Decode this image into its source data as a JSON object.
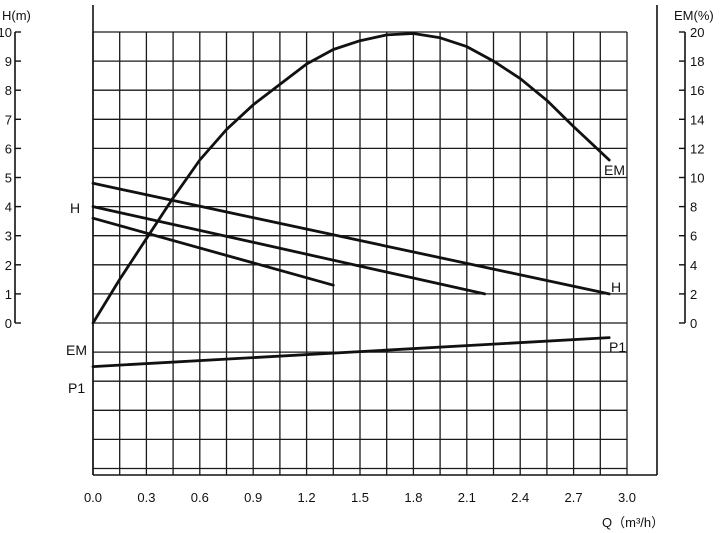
{
  "chart_data": {
    "type": "line",
    "x_axis": {
      "label": "Q（m³/h）",
      "range": [
        0,
        3.0
      ],
      "ticks": [
        "0.0",
        "0.3",
        "0.6",
        "0.9",
        "1.2",
        "1.5",
        "1.8",
        "2.1",
        "2.4",
        "2.7",
        "3.0"
      ]
    },
    "left_axis": {
      "label": "H(m)",
      "range": [
        0,
        10
      ],
      "ticks": [
        "0",
        "1",
        "2",
        "3",
        "4",
        "5",
        "6",
        "7",
        "8",
        "9",
        "10"
      ]
    },
    "right_axis": {
      "label": "EM(%)",
      "range": [
        0,
        20
      ],
      "ticks": [
        "0",
        "2",
        "4",
        "6",
        "8",
        "10",
        "12",
        "14",
        "16",
        "18",
        "20"
      ]
    },
    "grid": true,
    "series": [
      {
        "name": "H",
        "axis": "left",
        "points": [
          [
            0,
            4.8
          ],
          [
            2.9,
            1.0
          ]
        ]
      },
      {
        "axis": "left",
        "points": [
          [
            0,
            4.0
          ],
          [
            2.2,
            1.0
          ]
        ]
      },
      {
        "axis": "left",
        "points": [
          [
            0,
            3.6
          ],
          [
            1.35,
            1.3
          ]
        ]
      },
      {
        "name": "EM",
        "axis": "right",
        "points": [
          [
            0,
            0
          ],
          [
            0.15,
            3.0
          ],
          [
            0.3,
            5.8
          ],
          [
            0.45,
            8.6
          ],
          [
            0.6,
            11.2
          ],
          [
            0.75,
            13.3
          ],
          [
            0.9,
            15.0
          ],
          [
            1.05,
            16.4
          ],
          [
            1.2,
            17.8
          ],
          [
            1.35,
            18.8
          ],
          [
            1.5,
            19.4
          ],
          [
            1.65,
            19.8
          ],
          [
            1.8,
            19.9
          ],
          [
            1.95,
            19.6
          ],
          [
            2.1,
            19.0
          ],
          [
            2.25,
            18.0
          ],
          [
            2.4,
            16.8
          ],
          [
            2.55,
            15.3
          ],
          [
            2.7,
            13.5
          ],
          [
            2.9,
            11.2
          ]
        ]
      },
      {
        "name": "P1",
        "points": [
          [
            0,
            -1.5
          ],
          [
            2.9,
            -0.5
          ]
        ]
      }
    ],
    "curve_labels": {
      "h_left": "H",
      "h_right": "H",
      "em_left": "EM",
      "em_right": "EM",
      "p1_left": "P1",
      "p1_right": "P1"
    }
  }
}
